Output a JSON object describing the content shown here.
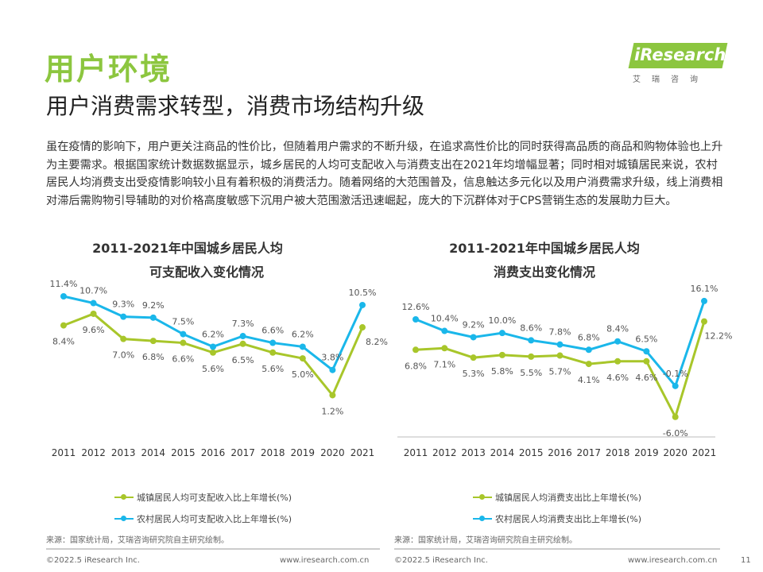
{
  "header": {
    "title": "用户环境",
    "subtitle": "用户消费需求转型，消费市场结构升级",
    "logo_text": "iResearch",
    "logo_cn": "艾瑞咨询"
  },
  "body_text": "虽在疫情的影响下，用户更关注商品的性价比，但随着用户需求的不断升级，在追求高性价比的同时获得高品质的商品和购物体验也上升为主要需求。根据国家统计数据数据显示，城乡居民的人均可支配收入与消费支出在2021年均增幅显著；同时相对城镇居民来说，农村居民人均消费支出受疫情影响较小且有着积极的消费活力。随着网络的大范围普及，信息触达多元化以及用户消费需求升级，线上消费相对滞后需购物引导辅助的对价格高度敏感下沉用户被大范围激活迅速崛起，庞大的下沉群体对于CPS营销生态的发展助力巨大。",
  "colors": {
    "urban": "#a8c62a",
    "rural": "#1ab7ea",
    "brand": "#8cc63f"
  },
  "chart_data": [
    {
      "type": "line",
      "title_line1": "2011-2021年中国城乡居民人均",
      "title_line2": "可支配收入变化情况",
      "categories": [
        "2011",
        "2012",
        "2013",
        "2014",
        "2015",
        "2016",
        "2017",
        "2018",
        "2019",
        "2020",
        "2021"
      ],
      "series": [
        {
          "name": "城镇居民人均可支配收入比上年增长(%)",
          "values": [
            8.4,
            9.6,
            7.0,
            6.8,
            6.6,
            5.6,
            6.5,
            5.6,
            5.0,
            1.2,
            8.2
          ],
          "labels": [
            "8.4%",
            "9.6%",
            "7.0%",
            "6.8%",
            "6.6%",
            "5.6%",
            "6.5%",
            "5.6%",
            "5.0%",
            "1.2%",
            "8.2%"
          ]
        },
        {
          "name": "农村居民人均可支配收入比上年增长(%)",
          "values": [
            11.4,
            10.7,
            9.3,
            9.2,
            7.5,
            6.2,
            7.3,
            6.6,
            6.2,
            3.8,
            10.5
          ],
          "labels": [
            "11.4%",
            "10.7%",
            "9.3%",
            "9.2%",
            "7.5%",
            "6.2%",
            "7.3%",
            "6.6%",
            "6.2%",
            "3.8%",
            "10.5%"
          ]
        }
      ],
      "source": "来源：国家统计局，艾瑞咨询研究院自主研究绘制。"
    },
    {
      "type": "line",
      "title_line1": "2011-2021年中国城乡居民人均",
      "title_line2": "消费支出变化情况",
      "categories": [
        "2011",
        "2012",
        "2013",
        "2014",
        "2015",
        "2016",
        "2017",
        "2018",
        "2019",
        "2020",
        "2021"
      ],
      "series": [
        {
          "name": "城镇居民人均消费支出比上年增长(%)",
          "values": [
            6.8,
            7.1,
            5.3,
            5.8,
            5.5,
            5.7,
            4.1,
            4.6,
            4.6,
            -6.0,
            12.2
          ],
          "labels": [
            "6.8%",
            "7.1%",
            "5.3%",
            "5.8%",
            "5.5%",
            "5.7%",
            "4.1%",
            "4.6%",
            "4.6%",
            "-6.0%",
            "12.2%"
          ]
        },
        {
          "name": "农村居民人均消费支出比上年增长(%)",
          "values": [
            12.6,
            10.4,
            9.2,
            10.0,
            8.6,
            7.8,
            6.8,
            8.4,
            6.5,
            -0.1,
            16.1
          ],
          "labels": [
            "12.6%",
            "10.4%",
            "9.2%",
            "10.0%",
            "8.6%",
            "7.8%",
            "6.8%",
            "8.4%",
            "6.5%",
            "-0.1%",
            "16.1%"
          ]
        }
      ],
      "source": "来源：国家统计局，艾瑞咨询研究院自主研究绘制。"
    }
  ],
  "footer": {
    "copyright": "©2022.5 iResearch Inc.",
    "url": "www.iresearch.com.cn",
    "page": "11"
  }
}
